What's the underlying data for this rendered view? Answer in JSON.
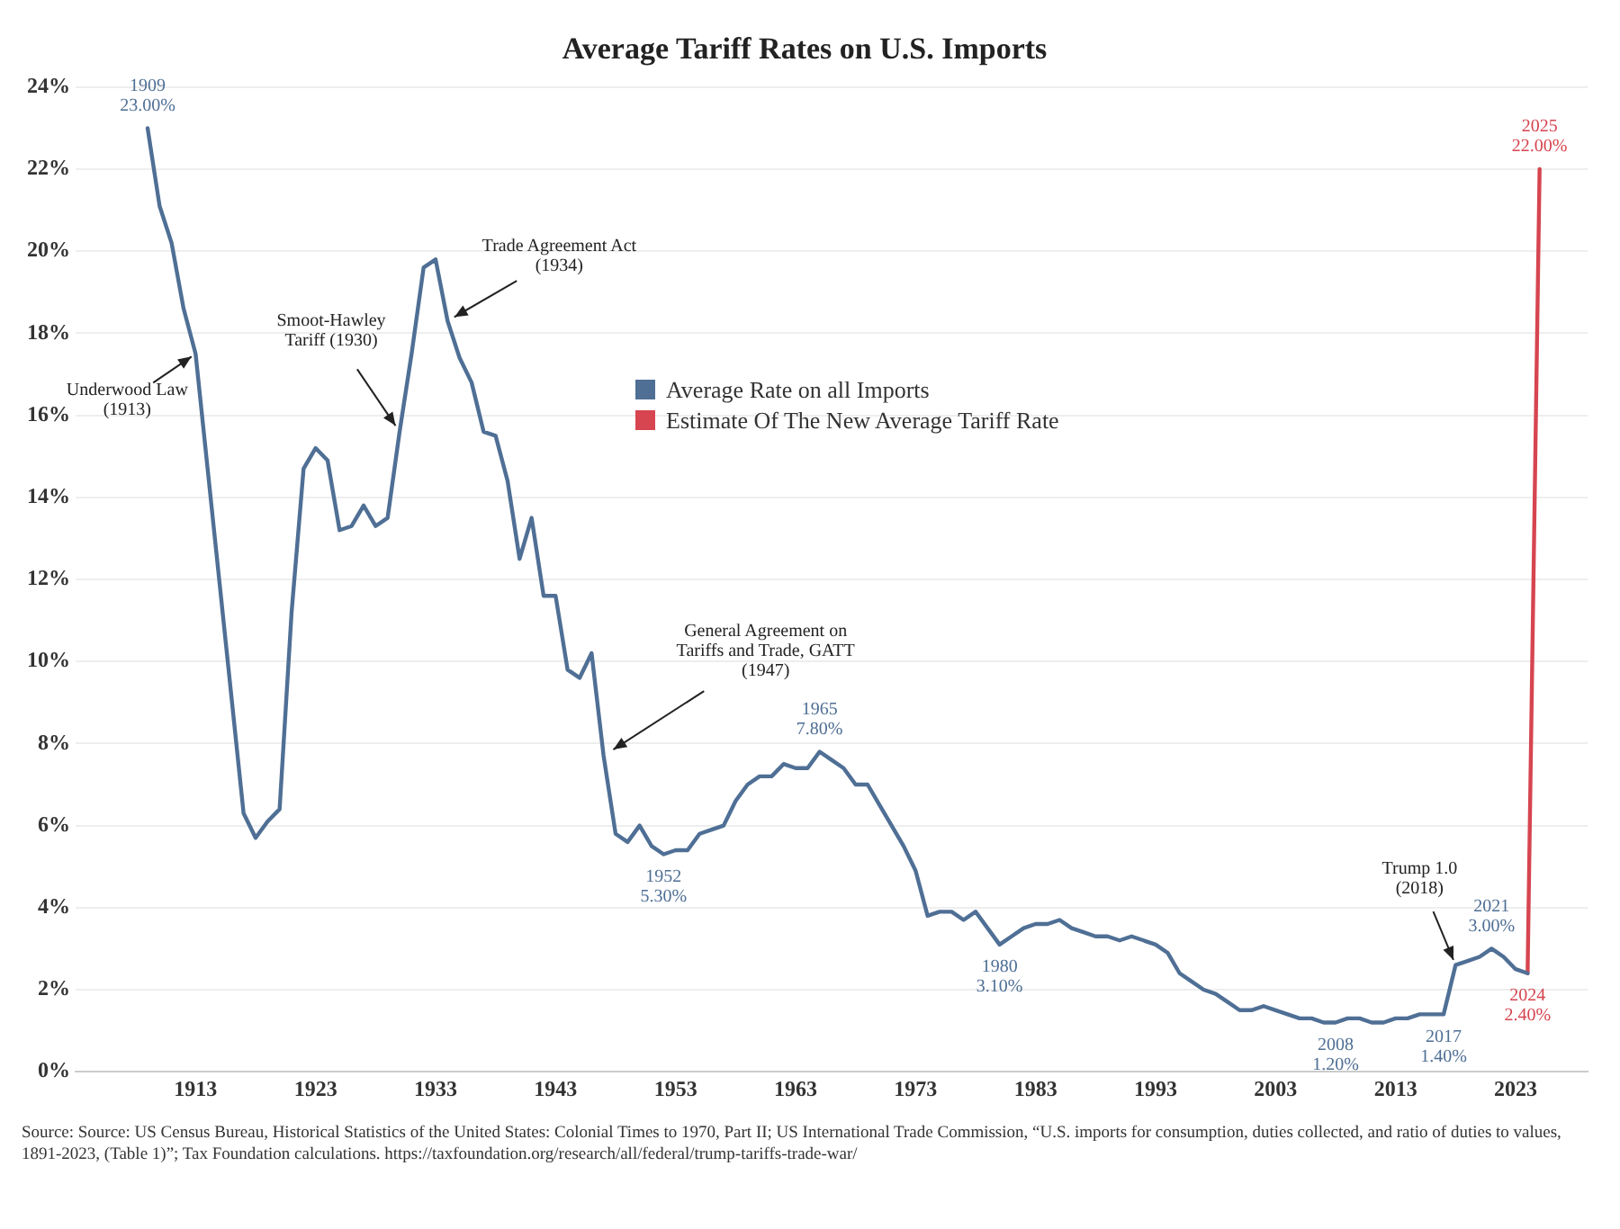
{
  "chart_data": {
    "type": "line",
    "title": "Average Tariff Rates on U.S. Imports",
    "xlim": [
      1903,
      2029
    ],
    "xticks": [
      1913,
      1923,
      1933,
      1943,
      1953,
      1963,
      1973,
      1983,
      1993,
      2003,
      2013,
      2023
    ],
    "ylim": [
      0,
      24
    ],
    "yticks": [
      {
        "value": 0,
        "label": "0%"
      },
      {
        "value": 2,
        "label": "2%"
      },
      {
        "value": 4,
        "label": "4%"
      },
      {
        "value": 6,
        "label": "6%"
      },
      {
        "value": 8,
        "label": "8%"
      },
      {
        "value": 10,
        "label": "10%"
      },
      {
        "value": 12,
        "label": "12%"
      },
      {
        "value": 14,
        "label": "14%"
      },
      {
        "value": 16,
        "label": "16%"
      },
      {
        "value": 18,
        "label": "18%"
      },
      {
        "value": 20,
        "label": "20%"
      },
      {
        "value": 22,
        "label": "22%"
      },
      {
        "value": 24,
        "label": "24%"
      }
    ],
    "grid": "y",
    "legend": "top",
    "marker": "none",
    "line_style": "solid",
    "series": [
      {
        "name": "Average Rate on all Imports",
        "color": "#4f6f95",
        "x": [
          1909,
          1910,
          1911,
          1912,
          1913,
          1914,
          1915,
          1916,
          1917,
          1918,
          1919,
          1920,
          1921,
          1922,
          1923,
          1924,
          1925,
          1926,
          1927,
          1928,
          1929,
          1930,
          1931,
          1932,
          1933,
          1934,
          1935,
          1936,
          1937,
          1938,
          1939,
          1940,
          1941,
          1942,
          1943,
          1944,
          1945,
          1946,
          1947,
          1948,
          1949,
          1950,
          1951,
          1952,
          1953,
          1954,
          1955,
          1956,
          1957,
          1958,
          1959,
          1960,
          1961,
          1962,
          1963,
          1964,
          1965,
          1966,
          1967,
          1968,
          1969,
          1970,
          1971,
          1972,
          1973,
          1974,
          1975,
          1976,
          1977,
          1978,
          1979,
          1980,
          1981,
          1982,
          1983,
          1984,
          1985,
          1986,
          1987,
          1988,
          1989,
          1990,
          1991,
          1992,
          1993,
          1994,
          1995,
          1996,
          1997,
          1998,
          1999,
          2000,
          2001,
          2002,
          2003,
          2004,
          2005,
          2006,
          2007,
          2008,
          2009,
          2010,
          2011,
          2012,
          2013,
          2014,
          2015,
          2016,
          2017,
          2018,
          2019,
          2020,
          2021,
          2022,
          2023,
          2024
        ],
        "values": [
          23,
          21.1,
          20.2,
          18.6,
          17.5,
          14.7,
          11.9,
          9.1,
          6.3,
          5.7,
          6.1,
          6.4,
          11.2,
          14.7,
          15.2,
          14.9,
          13.2,
          13.3,
          13.8,
          13.3,
          13.5,
          15.6,
          17.5,
          19.6,
          19.8,
          18.3,
          17.4,
          16.8,
          15.6,
          15.5,
          14.4,
          12.5,
          13.5,
          11.6,
          11.6,
          9.8,
          9.6,
          10.2,
          7.7,
          5.8,
          5.6,
          6.0,
          5.5,
          5.3,
          5.4,
          5.4,
          5.8,
          5.9,
          6.0,
          6.6,
          7.0,
          7.2,
          7.2,
          7.5,
          7.4,
          7.4,
          7.8,
          7.6,
          7.4,
          7.0,
          7.0,
          6.5,
          6.0,
          5.5,
          4.9,
          3.8,
          3.9,
          3.9,
          3.7,
          3.9,
          3.5,
          3.1,
          3.3,
          3.5,
          3.6,
          3.6,
          3.7,
          3.5,
          3.4,
          3.3,
          3.3,
          3.2,
          3.3,
          3.2,
          3.1,
          2.9,
          2.4,
          2.2,
          2.0,
          1.9,
          1.7,
          1.5,
          1.5,
          1.6,
          1.5,
          1.4,
          1.3,
          1.3,
          1.2,
          1.2,
          1.3,
          1.3,
          1.2,
          1.2,
          1.3,
          1.3,
          1.4,
          1.4,
          1.4,
          2.6,
          2.7,
          2.8,
          3.0,
          2.8,
          2.5,
          2.4
        ]
      },
      {
        "name": "Estimate Of The New Average Tariff Rate",
        "color": "#d64550",
        "x": [
          2024,
          2025
        ],
        "values": [
          2.4,
          22
        ]
      }
    ],
    "annotations": [
      {
        "text": "1909\n23.00%",
        "x": 1909,
        "y": 23
      },
      {
        "text": "Underwood Law\n(1913)",
        "x": 1913,
        "y": 17.5
      },
      {
        "text": "Smoot-Hawley\nTariff (1930)",
        "x": 1930,
        "y": 15.6
      },
      {
        "text": "Trade Agreement Act\n(1934)",
        "x": 1934,
        "y": 18.3
      },
      {
        "text": "General Agreement on\nTariffs and Trade, GATT\n(1947)",
        "x": 1947,
        "y": 7.7
      },
      {
        "text": "1952\n5.30%",
        "x": 1952,
        "y": 5.3
      },
      {
        "text": "1965\n7.80%",
        "x": 1965,
        "y": 7.8
      },
      {
        "text": "1980\n3.10%",
        "x": 1980,
        "y": 3.1
      },
      {
        "text": "2008\n1.20%",
        "x": 2008,
        "y": 1.2
      },
      {
        "text": "2017\n1.40%",
        "x": 2017,
        "y": 1.4
      },
      {
        "text": "Trump 1.0\n(2018)",
        "x": 2018,
        "y": 2.6
      },
      {
        "text": "2021\n3.00%",
        "x": 2021,
        "y": 3.0
      },
      {
        "text": "2024\n2.40%",
        "x": 2024,
        "y": 2.4
      },
      {
        "text": "2025\n22.00%",
        "x": 2025,
        "y": 22
      },
      "Source: Source: US Census Bureau, Historical Statistics of the United States: Colonial Times to 1970, Part II; US International Trade Commission, “U.S. imports for consumption, duties collected, and ratio of duties to values, 1891-2023, (Table 1)”; Tax Foundation calculations. https://taxfoundation.org/research/all/federal/trump-tariffs-trade-war/"
    ]
  }
}
